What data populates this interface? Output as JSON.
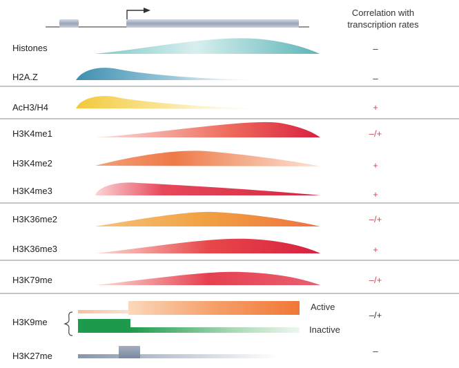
{
  "header": {
    "correlation_line1": "Correlation with",
    "correlation_line2": "transcription rates"
  },
  "colors": {
    "positive": "#d64555",
    "neutral": "#333333",
    "gene_body": "#aab4c6",
    "divider": "#888888"
  },
  "rows": [
    {
      "label": "Histones",
      "correlation": "–",
      "sign": "neutral",
      "color": "#5cb4b8"
    },
    {
      "label": "H2A.Z",
      "correlation": "–",
      "sign": "neutral",
      "color": "#3f8fb0"
    },
    {
      "label": "AcH3/H4",
      "correlation": "+",
      "sign": "positive",
      "color": "#f3c93a"
    },
    {
      "label": "H3K4me1",
      "correlation": "–/+",
      "sign": "positive",
      "color": "#e03b4a"
    },
    {
      "label": "H3K4me2",
      "correlation": "+",
      "sign": "positive",
      "color": "#e8603c"
    },
    {
      "label": "H3K4me3",
      "correlation": "+",
      "sign": "positive",
      "color": "#d93048"
    },
    {
      "label": "H3K36me2",
      "correlation": "–/+",
      "sign": "positive",
      "color": "#f0a040"
    },
    {
      "label": "H3K36me3",
      "correlation": "+",
      "sign": "positive",
      "color": "#e03448"
    },
    {
      "label": "H3K79me",
      "correlation": "–/+",
      "sign": "positive",
      "color": "#e03448"
    },
    {
      "label": "H3K9me",
      "correlation": "–/+",
      "sign": "neutral",
      "color": "#f07838"
    },
    {
      "label": "H3K27me",
      "correlation": "–",
      "sign": "neutral",
      "color": "#8896aa"
    }
  ],
  "h3k9me_states": {
    "active": "Active",
    "inactive": "Inactive",
    "active_color": "#f28040",
    "inactive_color": "#1e9a4c"
  },
  "icons": {
    "gene_model": "gene-diagram",
    "tss_arrow": "transcription-start-arrow",
    "brace": "curly-brace"
  }
}
